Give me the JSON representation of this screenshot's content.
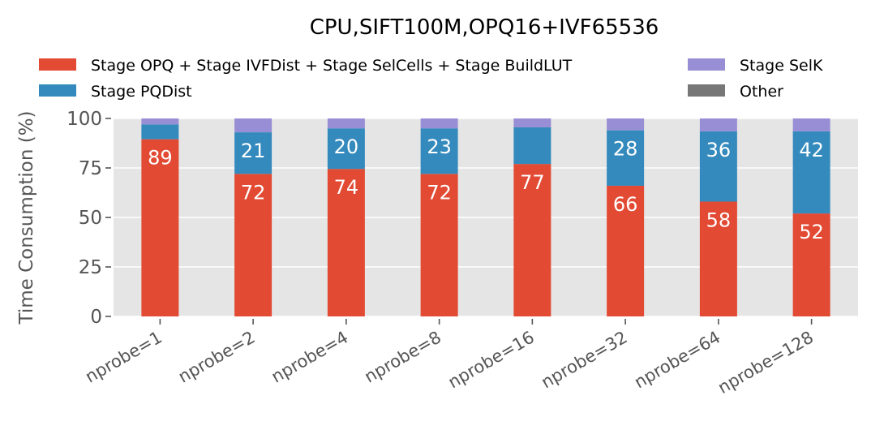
{
  "chart_data": {
    "type": "bar",
    "stacked": true,
    "title": "CPU,SIFT100M,OPQ16+IVF65536",
    "xlabel": "",
    "ylabel": "Time Consumption (%)",
    "ylim": [
      0,
      100
    ],
    "yticks": [
      0,
      25,
      50,
      75,
      100
    ],
    "grid": true,
    "legend_position": "top",
    "categories": [
      "nprobe=1",
      "nprobe=2",
      "nprobe=4",
      "nprobe=8",
      "nprobe=16",
      "nprobe=32",
      "nprobe=64",
      "nprobe=128"
    ],
    "series": [
      {
        "name": "Stage OPQ + Stage IVFDist + Stage SelCells + Stage BuildLUT",
        "color": "#E24A33",
        "values": [
          89.5,
          72,
          74.5,
          72,
          77,
          66,
          58,
          52
        ],
        "labels": [
          "89",
          "72",
          "74",
          "72",
          "77",
          "66",
          "58",
          "52"
        ]
      },
      {
        "name": "Stage PQDist",
        "color": "#348ABD",
        "values": [
          7.5,
          21,
          20.5,
          23,
          18.5,
          28,
          35.5,
          41.5
        ],
        "labels": [
          "",
          "21",
          "20",
          "23",
          "",
          "28",
          "36",
          "42"
        ]
      },
      {
        "name": "Stage SelK",
        "color": "#988ED5",
        "values": [
          3,
          7,
          5,
          5,
          4.5,
          6,
          6.5,
          6.5
        ],
        "labels": [
          "",
          "",
          "",
          "",
          "",
          "",
          "",
          ""
        ]
      },
      {
        "name": "Other",
        "color": "#777777",
        "values": [
          0,
          0,
          0,
          0,
          0,
          0,
          0,
          0
        ],
        "labels": [
          "",
          "",
          "",
          "",
          "",
          "",
          "",
          ""
        ]
      }
    ],
    "plot_background": "#E5E5E5",
    "grid_color": "#FFFFFF"
  }
}
